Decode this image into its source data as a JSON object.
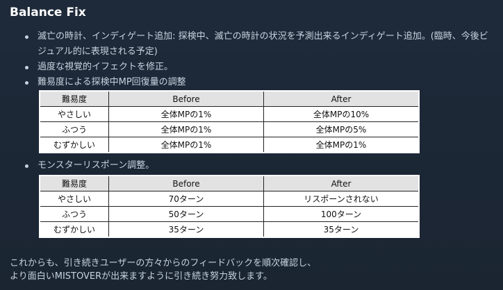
{
  "title": "Balance Fix",
  "bullets": [
    "滅亡の時計、インディゲート追加: 探検中、滅亡の時計の状況を予測出来るインディゲート追加。(臨時、今後ビジュアル的に表現される予定)",
    "過度な視覚的イフェクトを修正。",
    "難易度による探検中MP回復量の調整",
    "モンスターリスポーン調整。"
  ],
  "table_mp": {
    "headers": [
      "難易度",
      "Before",
      "After"
    ],
    "rows": [
      [
        "やさしい",
        "全体MPの1%",
        "全体MPの10%"
      ],
      [
        "ふつう",
        "全体MPの1%",
        "全体MPの5%"
      ],
      [
        "むずかしい",
        "全体MPの1%",
        "全体MPの1%"
      ]
    ]
  },
  "table_respawn": {
    "headers": [
      "難易度",
      "Before",
      "After"
    ],
    "rows": [
      [
        "やさしい",
        "70ターン",
        "リスポーンされない"
      ],
      [
        "ふつう",
        "50ターン",
        "100ターン"
      ],
      [
        "むずかしい",
        "35ターン",
        "35ターン"
      ]
    ]
  },
  "closing": [
    "これからも、引き続きユーザーの方々からのフィードバックを順次確認し、",
    "より面白いMISTOVERが出来ますように引き続き努力致します。"
  ]
}
